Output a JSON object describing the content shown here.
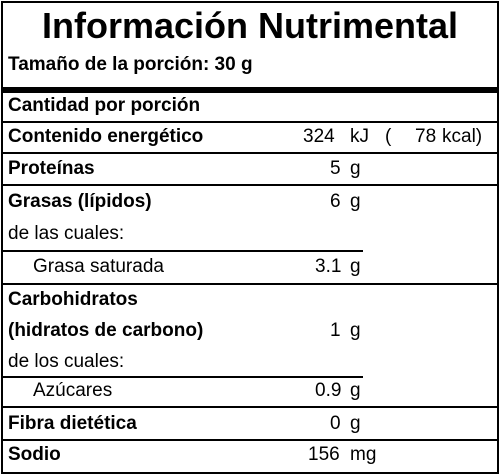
{
  "title": "Información Nutrimental",
  "serving": "Tamaño de la porción: 30 g",
  "header": "Cantidad por porción",
  "energy": {
    "label": "Contenido energético",
    "kj": "324",
    "kj_unit": "kJ",
    "open": "(",
    "kcal": "78",
    "kcal_unit": "kcal)"
  },
  "proteins": {
    "label": "Proteínas",
    "value": "5",
    "unit": "g"
  },
  "fats": {
    "label": "Grasas (lípidos)",
    "value": "6",
    "unit": "g",
    "sub_label": "de las cuales:",
    "saturated": {
      "label": "Grasa saturada",
      "value": "3.1",
      "unit": "g"
    }
  },
  "carbs": {
    "label1": "Carbohidratos",
    "label2": "(hidratos de carbono)",
    "value": "1",
    "unit": "g",
    "sub_label": "de los cuales:",
    "sugars": {
      "label": "Azúcares",
      "value": "0.9",
      "unit": "g"
    }
  },
  "fiber": {
    "label": "Fibra dietética",
    "value": "0",
    "unit": "g"
  },
  "sodium": {
    "label": "Sodio",
    "value": "156",
    "unit": "mg"
  }
}
